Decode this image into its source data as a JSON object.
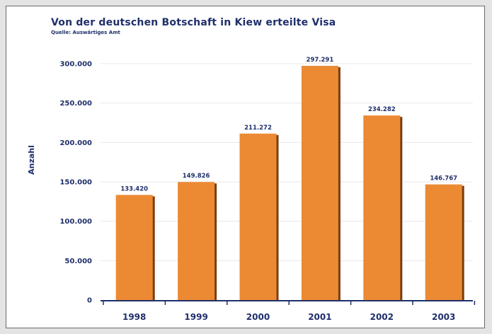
{
  "title": "Von der deutschen Botschaft in Kiew erteilte Visa",
  "subtitle": "Quelle: Auswärtiges Amt",
  "colors": {
    "bar_fill": "#ec8a34",
    "bar_shadow": "#7a3e10",
    "text": "#1f2f6b",
    "gridline": "#e8e8e8"
  },
  "chart_data": {
    "type": "bar",
    "title": "Von der deutschen Botschaft in Kiew erteilte Visa",
    "subtitle": "Quelle: Auswärtiges Amt",
    "xlabel": "",
    "ylabel": "Anzahl",
    "categories": [
      "1998",
      "1999",
      "2000",
      "2001",
      "2002",
      "2003"
    ],
    "values": [
      133420,
      149826,
      211272,
      297291,
      234282,
      146767
    ],
    "value_labels": [
      "133.420",
      "149.826",
      "211.272",
      "297.291",
      "234.282",
      "146.767"
    ],
    "ylim": [
      0,
      300000
    ],
    "yticks": [
      0,
      50000,
      100000,
      150000,
      200000,
      250000,
      300000
    ],
    "ytick_labels": [
      "0",
      "50.000",
      "100.000",
      "150.000",
      "200.000",
      "250.000",
      "300.000"
    ],
    "grid": true,
    "legend": "none"
  }
}
